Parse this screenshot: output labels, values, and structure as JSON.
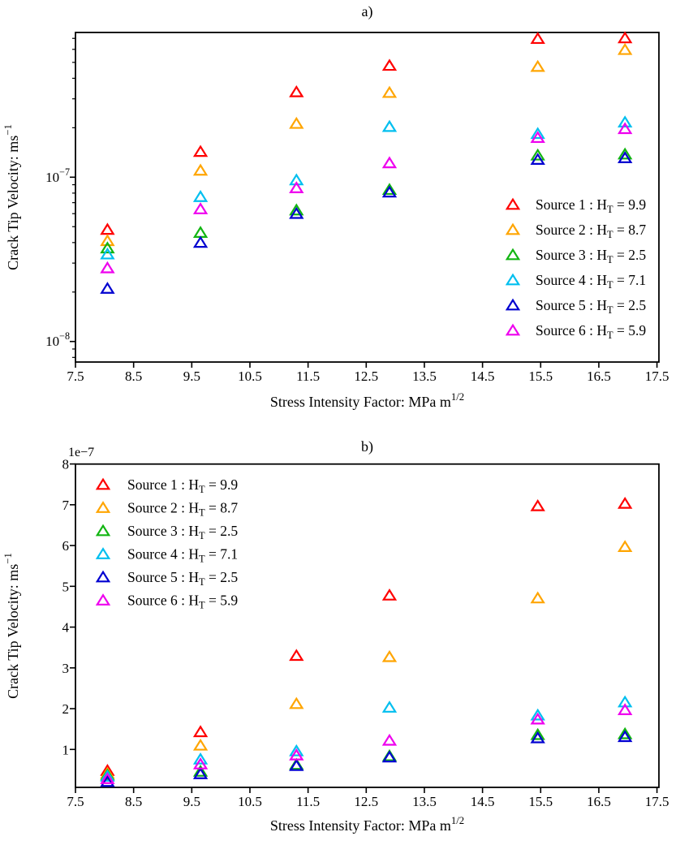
{
  "chart_data": {
    "type": "scatter",
    "marker": "open-triangle-up",
    "xlabel": "Stress Intensity Factor: MPa m^(1/2)",
    "ylabel": "Crack Tip Velocity: ms^(-1)",
    "xlabel_parts": {
      "base": "Stress Intensity Factor: MPa m",
      "sup": "1/2"
    },
    "ylabel_parts": {
      "base": "Crack Tip Velocity: ms",
      "sup": "−1"
    },
    "x": [
      8.05,
      9.65,
      11.3,
      12.9,
      15.45,
      16.95
    ],
    "xticks": [
      7.5,
      8.5,
      9.5,
      10.5,
      11.5,
      12.5,
      13.5,
      14.5,
      15.5,
      16.5,
      17.5
    ],
    "series": [
      {
        "name": "Source 1",
        "ht": "9.9",
        "color": "#ff0000",
        "values": [
          4.8e-08,
          1.43e-07,
          3.3e-07,
          4.78e-07,
          6.97e-07,
          7.03e-07
        ]
      },
      {
        "name": "Source 2",
        "ht": "8.7",
        "color": "#ffa500",
        "values": [
          4.1e-08,
          1.1e-07,
          2.12e-07,
          3.27e-07,
          4.71e-07,
          5.97e-07
        ]
      },
      {
        "name": "Source 3",
        "ht": "2.5",
        "color": "#12b512",
        "values": [
          3.7e-08,
          4.6e-08,
          6.3e-08,
          8.4e-08,
          1.36e-07,
          1.38e-07
        ]
      },
      {
        "name": "Source 4",
        "ht": "7.1",
        "color": "#00bfef",
        "values": [
          3.4e-08,
          7.6e-08,
          9.6e-08,
          2.03e-07,
          1.84e-07,
          2.16e-07
        ]
      },
      {
        "name": "Source 5",
        "ht": "2.5",
        "color": "#0000d0",
        "values": [
          2.1e-08,
          4e-08,
          6e-08,
          8.1e-08,
          1.28e-07,
          1.31e-07
        ]
      },
      {
        "name": "Source 6",
        "ht": "5.9",
        "color": "#ee00ee",
        "values": [
          2.8e-08,
          6.4e-08,
          8.6e-08,
          1.22e-07,
          1.74e-07,
          1.97e-07
        ]
      }
    ],
    "legend_format": "{name} : H_T = {ht}",
    "subplots": [
      {
        "title": "a)",
        "yscale": "log",
        "xlim": [
          7.5,
          17.53
        ],
        "ylim": [
          7.5e-09,
          7.6e-07
        ],
        "ytick_labels": [
          {
            "base": "10",
            "exp": "−8",
            "value": 1e-08
          },
          {
            "base": "10",
            "exp": "−7",
            "value": 1e-07
          }
        ],
        "legend_position": "center-right",
        "grid": false
      },
      {
        "title": "b)",
        "yscale": "linear",
        "xlim": [
          7.5,
          17.53
        ],
        "ylim": [
          7e-09,
          8e-07
        ],
        "yticks": [
          1,
          2,
          3,
          4,
          5,
          6,
          7,
          8
        ],
        "offset_text": "1e−7",
        "legend_position": "upper-left",
        "grid": false
      }
    ]
  }
}
